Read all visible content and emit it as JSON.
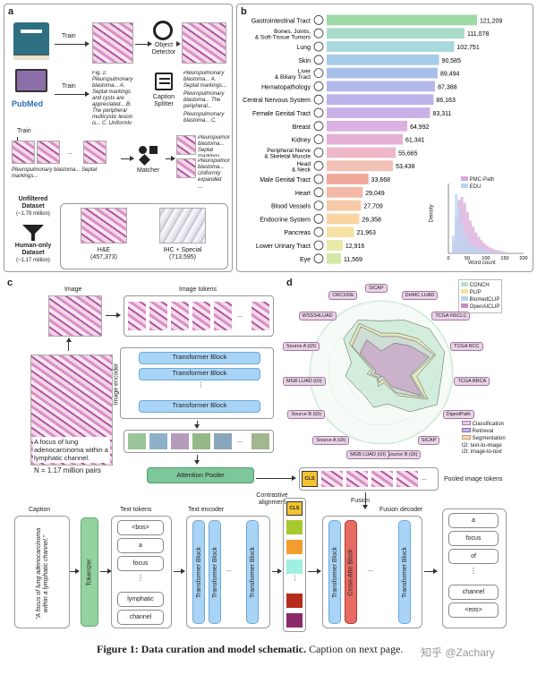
{
  "panel_a": {
    "label": "a",
    "train_label": "Train",
    "object_detector": "Object\nDetector",
    "caption_splitter": "Caption\nSplitter",
    "matcher": "Matcher",
    "pubmed_logo": "PubMed",
    "doc_text_1": "Fig. 2. Pleuropulmonary blastoma... A. Septal markings and cysts are appreciated... B. The peripheral multicystic lesion is... C. Uniformly expanded septa by...",
    "split_text_1": "Pleuropulmonary blastoma... A. Septal markings...",
    "split_text_2": "Pleuropulmonary blastoma... The peripheral...",
    "split_text_3": "Pleuropulmonary blastoma... C. Uniformly expanded septa by...",
    "matched_caption_1": "Pleuropulmonary blastoma... Septal markings...",
    "matched_caption_2": "Pleuropulmonary blastoma... The peripheral...",
    "matched_caption_3": "Pleuropulmonary blastoma... Uniformly expanded septa by...",
    "ellipsis": "...",
    "unfiltered": "Unfiltered\nDataset",
    "unfiltered_count": "(~1.79 million)",
    "human_only": "Human-only\nDataset",
    "human_only_count": "(~1.17 million)",
    "he_label": "H&E",
    "he_count": "(457,373)",
    "ihc_label": "IHC + Special",
    "ihc_count": "(713,595)"
  },
  "panel_b": {
    "label": "b",
    "inset_legend": [
      "PMC-Path",
      "EDU"
    ],
    "inset_xlabel": "Word count",
    "inset_ylabel": "Density",
    "inset_xticks": [
      "0",
      "50",
      "100",
      "150",
      "200"
    ]
  },
  "chart_data": {
    "type": "bar",
    "orientation": "horizontal",
    "categories": [
      "Gastrointestinal Tract",
      "Bones, Joints,\n& Soft-Tissue Tumors",
      "Lung",
      "Skin",
      "Liver\n& Biliary Tract",
      "Hematopathology",
      "Central Nervous System",
      "Female Genital Tract",
      "Breast",
      "Kidney",
      "Peripheral Nerve\n& Skeletal Muscle",
      "Head\n& Neck",
      "Male Genital Tract",
      "Heart",
      "Blood Vessels",
      "Endocrine System",
      "Pancreas",
      "Lower Urinary Tract",
      "Eye"
    ],
    "values": [
      121209,
      111078,
      102751,
      90585,
      89494,
      87388,
      86163,
      83311,
      64992,
      61341,
      55665,
      53438,
      33668,
      29049,
      27709,
      26358,
      21963,
      12916,
      11569
    ],
    "value_labels": [
      "121,209",
      "111,078",
      "102,751",
      "90,585",
      "89,494",
      "87,388",
      "86,163",
      "83,311",
      "64,992",
      "61,341",
      "55,665",
      "53,438",
      "33,668",
      "29,049",
      "27,709",
      "26,358",
      "21,963",
      "12,916",
      "11,569"
    ],
    "colors": [
      "#9fd9a6",
      "#a8dcc9",
      "#a9d7de",
      "#a6cbe8",
      "#a9c0ea",
      "#b2b8ea",
      "#bdb3ea",
      "#c9b0e6",
      "#dab1e0",
      "#e6b1d6",
      "#eeb7c8",
      "#f3c1b5",
      "#f0a89a",
      "#f4b8a7",
      "#f7c8a6",
      "#f8d5a3",
      "#f7e2a5",
      "#eaeaa8",
      "#d4e8a6"
    ],
    "inset_histogram": {
      "type": "histogram",
      "series": [
        {
          "name": "PMC-Path",
          "color": "#d8a8d8",
          "values": [
            0.2,
            0.6,
            0.9,
            0.95,
            0.85,
            0.7,
            0.55,
            0.45,
            0.35,
            0.28,
            0.22,
            0.17,
            0.13,
            0.1,
            0.08,
            0.06,
            0.05,
            0.04,
            0.03,
            0.02
          ]
        },
        {
          "name": "EDU",
          "color": "#b9d6f2",
          "values": [
            0.3,
            1.0,
            0.75,
            0.5,
            0.35,
            0.25,
            0.18,
            0.14,
            0.1,
            0.08,
            0.06,
            0.05,
            0.04,
            0.03,
            0.02,
            0.02,
            0.01,
            0.01,
            0.01,
            0.01
          ]
        }
      ],
      "xlim": [
        0,
        200
      ]
    }
  },
  "panel_c": {
    "label": "c",
    "image_title": "Image",
    "image_tokens_title": "Image tokens",
    "image_encoder": "Image encoder",
    "transformer_block": "Transformer Block",
    "vdots": "⋮",
    "hdots": "...",
    "caption_overlay": "A focus of lung adenocarcinoma within a lymphatic channel.",
    "pairs": "N = 1.17 million pairs",
    "attention_pooler": "Attention Pooler",
    "pooled_tokens": "Pooled image tokens",
    "cls": "CLS",
    "contrastive": "Contrastive\nalignment",
    "fusion": "Fusion",
    "caption_title": "Caption",
    "caption_text": "\"A focus of lung adenocarcinoma within a lymphatic channel.\"",
    "tokenizer": "Tokenizer",
    "text_tokens_title": "Text tokens",
    "text_tokens": [
      "<bos>",
      "a",
      "focus",
      "⋮",
      "lymphatic",
      "channel"
    ],
    "text_encoder_title": "Text encoder",
    "fusion_decoder_title": "Fusion decoder",
    "cross_attn": "Cross-Attn Block",
    "out_tokens": [
      "a",
      "focus",
      "of",
      "⋮",
      "channel",
      "<eos>"
    ]
  },
  "panel_d": {
    "label": "d",
    "legend": [
      {
        "name": "CONCH",
        "color": "#b7e2c7"
      },
      {
        "name": "PLIP",
        "color": "#f2e2a2"
      },
      {
        "name": "BiomedCLIP",
        "color": "#b9d4ec"
      },
      {
        "name": "OpenAICLIP",
        "color": "#c78ec3"
      }
    ],
    "task_legend": [
      "Classification",
      "Retrieval",
      "Segmentation"
    ],
    "task_colors": [
      "#e8c8e6",
      "#c9b5e3",
      "#f3d6b5"
    ],
    "notes": [
      "t2i: text-to-image",
      "i2t: image-to-text"
    ],
    "tasks": [
      "SICAP",
      "DHMC LUAD",
      "TCGA NSCLC",
      "TCGA RCC",
      "TCGA BRCA",
      "DigestPath",
      "SICAP",
      "Source B (i2t)",
      "MGB LUAD (i2t)",
      "Source A (i2t)",
      "Source B (t2i)",
      "MGB LUAD (t2i)",
      "Source A (t2i)",
      "WSSS4LUAD",
      "CRC100k"
    ],
    "conch_scores": [
      72,
      80,
      91,
      93,
      84,
      90,
      68,
      45,
      50,
      40,
      41,
      50,
      44,
      71,
      80
    ],
    "plip_scores": [
      55,
      60,
      70,
      80,
      50,
      75,
      40,
      15,
      20,
      10,
      12,
      20,
      15,
      60,
      75
    ],
    "biomed_scores": [
      50,
      55,
      65,
      78,
      42,
      70,
      35,
      10,
      15,
      8,
      10,
      15,
      12,
      55,
      70
    ],
    "openai_scores": [
      30,
      45,
      55,
      70,
      40,
      65,
      25,
      5,
      8,
      4,
      6,
      10,
      8,
      40,
      50
    ]
  },
  "caption": {
    "bold": "Figure 1: Data curation and model schematic.",
    "rest": "Caption on next page."
  },
  "watermark": "知乎 @Zachary"
}
